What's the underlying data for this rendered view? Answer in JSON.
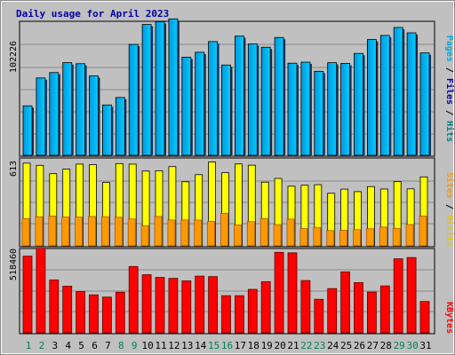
{
  "chart_data": {
    "type": "bar",
    "title": "Daily usage for April 2023",
    "days": [
      "1",
      "2",
      "3",
      "4",
      "5",
      "6",
      "7",
      "8",
      "9",
      "10",
      "11",
      "12",
      "13",
      "14",
      "15",
      "16",
      "17",
      "18",
      "19",
      "20",
      "21",
      "22",
      "23",
      "24",
      "25",
      "26",
      "27",
      "28",
      "29",
      "30",
      "31"
    ],
    "weekend_days": [
      "1",
      "2",
      "8",
      "9",
      "15",
      "16",
      "22",
      "23",
      "29",
      "30"
    ],
    "panels": [
      {
        "name": "pages-files-hits",
        "ymax_label": "102226",
        "ymax": 102226,
        "legend": [
          "Pages",
          "/",
          "Files",
          "/",
          "Hits"
        ],
        "series": [
          {
            "name": "Pages",
            "color": "#00aadd",
            "values": [
              38500,
              60200,
              64400,
              72100,
              71300,
              61800,
              39200,
              45000,
              86300,
              101800,
              104000,
              106200,
              76400,
              80200,
              88500,
              70300,
              92800,
              86700,
              84100,
              91700,
              71700,
              72500,
              65400,
              72100,
              71500,
              79300,
              90100,
              93300,
              99500,
              95300,
              79700
            ]
          },
          {
            "name": "Files",
            "color": "#0088cc",
            "values": [
              0,
              0,
              0,
              0,
              0,
              0,
              0,
              0,
              0,
              0,
              0,
              0,
              0,
              0,
              0,
              0,
              0,
              0,
              0,
              0,
              0,
              0,
              0,
              0,
              0,
              0,
              0,
              0,
              0,
              0,
              0
            ]
          },
          {
            "name": "Hits",
            "color": "#00ccee",
            "values": [
              0,
              0,
              0,
              0,
              0,
              0,
              0,
              0,
              0,
              0,
              0,
              0,
              0,
              0,
              0,
              0,
              0,
              0,
              0,
              0,
              0,
              0,
              0,
              0,
              0,
              0,
              0,
              0,
              0,
              0,
              0
            ]
          }
        ]
      },
      {
        "name": "visits-sites",
        "ymax_label": "613",
        "ymax": 613,
        "legend": [
          "Sites",
          "/",
          "Visits"
        ],
        "series": [
          {
            "name": "Visits",
            "color": "#ffff00",
            "values": [
              595,
              579,
              519,
              552,
              588,
              584,
              456,
              592,
              588,
              538,
              540,
              570,
              461,
              512,
              603,
              526,
              589,
              580,
              458,
              485,
              429,
              436,
              440,
              378,
              408,
              390,
              426,
              409,
              462,
              410,
              496
            ]
          },
          {
            "name": "Sites",
            "color": "#ff9900",
            "values": [
              196,
              209,
              214,
              207,
              207,
              211,
              210,
              206,
              193,
              144,
              211,
              186,
              186,
              185,
              176,
              234,
              151,
              174,
              197,
              153,
              192,
              124,
              131,
              110,
              112,
              117,
              123,
              135,
              125,
              153,
              214
            ]
          }
        ]
      },
      {
        "name": "kbytes",
        "ymax_label": "518460",
        "ymax": 518460,
        "legend": [
          "KBytes"
        ],
        "series": [
          {
            "name": "KBytes",
            "color": "#ff0000",
            "values": [
              487000,
              537000,
              336000,
              296000,
              262000,
              241000,
              227000,
              258000,
              421000,
              369000,
              352000,
              346000,
              330000,
              360000,
              357000,
              236000,
              236000,
              276000,
              325000,
              511000,
              508000,
              332000,
              213000,
              281000,
              387000,
              319000,
              259000,
              298000,
              470000,
              478000,
              199000
            ]
          }
        ]
      }
    ],
    "colors": {
      "title": "#0000aa",
      "pages": "#00aadd",
      "files": "#0000aa",
      "hits": "#008080",
      "sites": "#ff9900",
      "visits": "#ffaa00",
      "kbytes": "#ff0000",
      "weekday_label": "#000000",
      "weekend_label": "#00805a"
    }
  }
}
